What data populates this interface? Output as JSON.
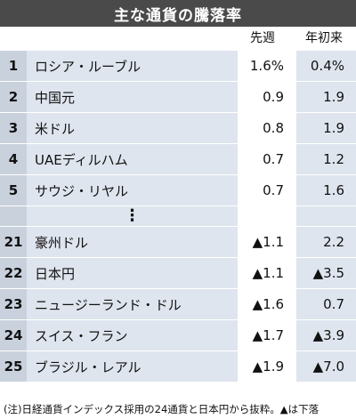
{
  "chart_data": {
    "type": "table",
    "title": "主な通貨の騰落率",
    "columns": [
      "先週",
      "年初来"
    ],
    "rows": [
      {
        "rank": "1",
        "name": "ロシア・ルーブル",
        "week": "1.6%",
        "ytd": "0.4%"
      },
      {
        "rank": "2",
        "name": "中国元",
        "week": "0.9",
        "ytd": "1.9"
      },
      {
        "rank": "3",
        "name": "米ドル",
        "week": "0.8",
        "ytd": "1.9"
      },
      {
        "rank": "4",
        "name": "UAEディルハム",
        "week": "0.7",
        "ytd": "1.2"
      },
      {
        "rank": "5",
        "name": "サウジ・リヤル",
        "week": "0.7",
        "ytd": "1.6"
      },
      {
        "rank": "",
        "name": "⋮",
        "week": "",
        "ytd": ""
      },
      {
        "rank": "21",
        "name": "豪州ドル",
        "week": "▲1.1",
        "ytd": "2.2"
      },
      {
        "rank": "22",
        "name": "日本円",
        "week": "▲1.1",
        "ytd": "▲3.5"
      },
      {
        "rank": "23",
        "name": "ニュージーランド・ドル",
        "week": "▲1.6",
        "ytd": "0.7"
      },
      {
        "rank": "24",
        "name": "スイス・フラン",
        "week": "▲1.7",
        "ytd": "▲3.9"
      },
      {
        "rank": "25",
        "name": "ブラジル・レアル",
        "week": "▲1.9",
        "ytd": "▲7.0"
      }
    ],
    "footnote": "(注)日経通貨インデックス採用の24通貨と日本円から抜粋。▲は下落"
  }
}
